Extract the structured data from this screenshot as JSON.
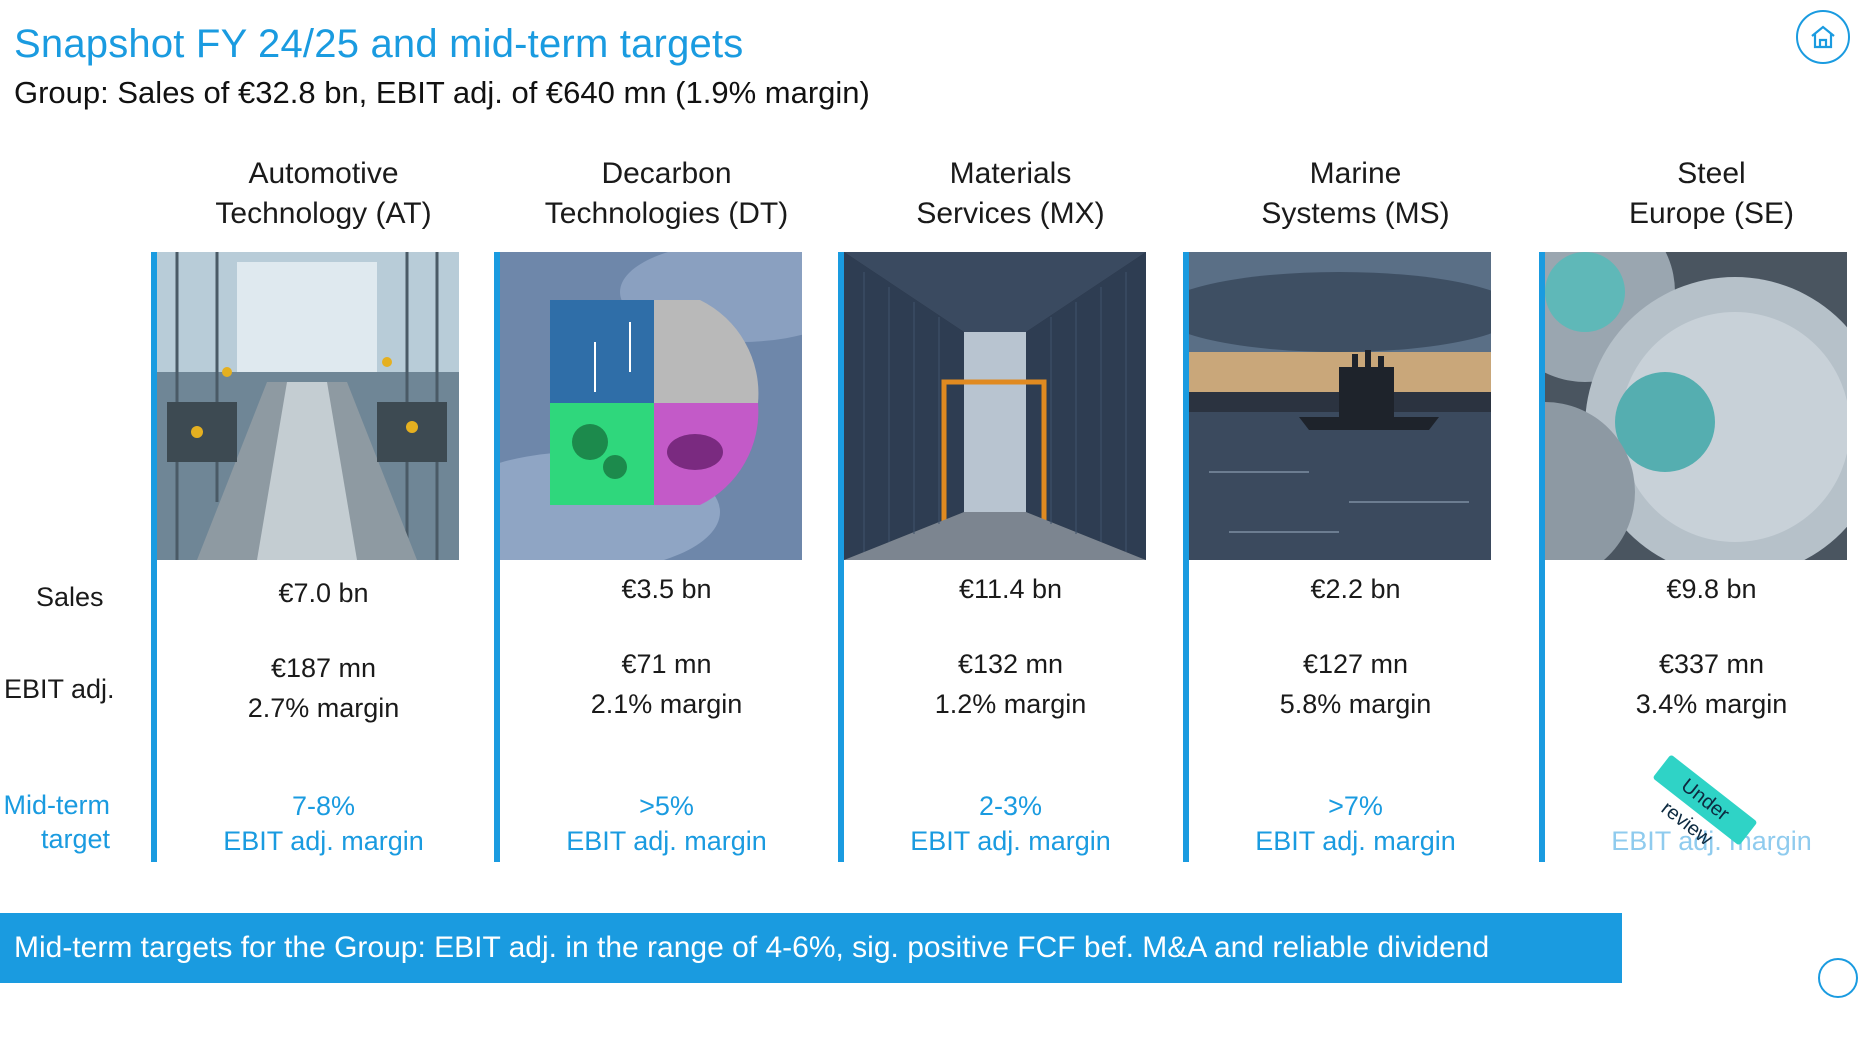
{
  "header": {
    "title": "Snapshot FY 24/25 and mid-term targets",
    "subtitle": "Group: Sales of €32.8 bn, EBIT adj. of €640 mn (1.9% margin)"
  },
  "row_labels": {
    "sales": "Sales",
    "ebit": "EBIT adj.",
    "target_line1": "Mid-term",
    "target_line2": "target"
  },
  "segments": [
    {
      "name_line1": "Automotive",
      "name_line2": "Technology (AT)",
      "sales": "€7.0 bn",
      "ebit": "€187 mn",
      "margin": "2.7% margin",
      "target": "7-8%",
      "target_metric": "EBIT adj. margin"
    },
    {
      "name_line1": "Decarbon",
      "name_line2": "Technologies (DT)",
      "sales": "€3.5 bn",
      "ebit": "€71 mn",
      "margin": "2.1% margin",
      "target": ">5%",
      "target_metric": "EBIT adj. margin"
    },
    {
      "name_line1": "Materials",
      "name_line2": "Services (MX)",
      "sales": "€11.4 bn",
      "ebit": "€132 mn",
      "margin": "1.2% margin",
      "target": "2-3%",
      "target_metric": "EBIT adj. margin"
    },
    {
      "name_line1": "Marine",
      "name_line2": "Systems (MS)",
      "sales": "€2.2 bn",
      "ebit": "€127 mn",
      "margin": "5.8% margin",
      "target": ">7%",
      "target_metric": "EBIT adj. margin"
    },
    {
      "name_line1": "Steel",
      "name_line2": "Europe (SE)",
      "sales": "€9.8 bn",
      "ebit": "€337 mn",
      "margin": "3.4% margin",
      "target": "",
      "target_metric": "EBIT adj. margin",
      "badge": "Under review"
    }
  ],
  "banner": "Mid-term targets for the Group: EBIT adj. in the range of 4-6%, sig. positive FCF bef. M&A and reliable dividend payments",
  "icons": {
    "home": "home-icon"
  },
  "colors": {
    "accent": "#1a9be0",
    "badge": "#2fd3c6"
  }
}
